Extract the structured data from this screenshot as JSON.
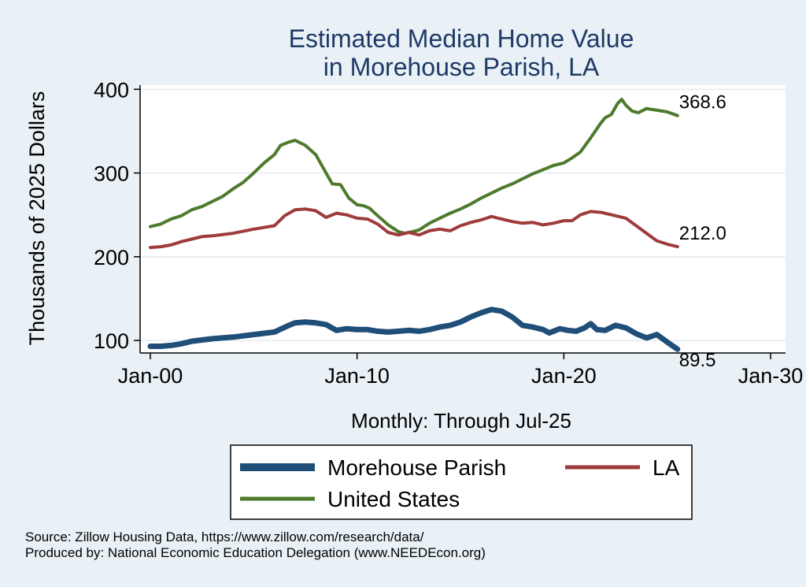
{
  "chart_data": {
    "type": "line",
    "title": [
      "Estimated Median Home Value",
      "in Morehouse Parish, LA"
    ],
    "xlabel": "Monthly: Through Jul-25",
    "ylabel": "Thousands of 2025 Dollars",
    "xlim": [
      2000,
      2030
    ],
    "ylim": [
      85,
      405
    ],
    "x_ticks": [
      {
        "value": 2000,
        "label": "Jan-00"
      },
      {
        "value": 2010,
        "label": "Jan-10"
      },
      {
        "value": 2020,
        "label": "Jan-20"
      },
      {
        "value": 2030,
        "label": "Jan-30"
      }
    ],
    "y_ticks": [
      100,
      200,
      300,
      400
    ],
    "series": [
      {
        "name": "Morehouse Parish",
        "color": "#1f4e79",
        "end_label": "89.5",
        "points": [
          [
            2000.0,
            93
          ],
          [
            2000.5,
            93
          ],
          [
            2001.0,
            94
          ],
          [
            2001.5,
            96
          ],
          [
            2002.0,
            99
          ],
          [
            2003.0,
            102
          ],
          [
            2004.0,
            104
          ],
          [
            2005.0,
            107
          ],
          [
            2006.0,
            110
          ],
          [
            2006.7,
            118
          ],
          [
            2007.0,
            121
          ],
          [
            2007.5,
            122
          ],
          [
            2008.0,
            121
          ],
          [
            2008.5,
            119
          ],
          [
            2009.0,
            112
          ],
          [
            2009.5,
            114
          ],
          [
            2010.0,
            113
          ],
          [
            2010.5,
            113
          ],
          [
            2011.0,
            111
          ],
          [
            2011.5,
            110
          ],
          [
            2012.0,
            111
          ],
          [
            2012.5,
            112
          ],
          [
            2013.0,
            111
          ],
          [
            2013.5,
            113
          ],
          [
            2014.0,
            116
          ],
          [
            2014.5,
            118
          ],
          [
            2015.0,
            122
          ],
          [
            2015.5,
            128
          ],
          [
            2016.0,
            133
          ],
          [
            2016.5,
            137
          ],
          [
            2017.0,
            135
          ],
          [
            2017.5,
            128
          ],
          [
            2018.0,
            118
          ],
          [
            2018.5,
            116
          ],
          [
            2019.0,
            113
          ],
          [
            2019.3,
            109
          ],
          [
            2019.8,
            114
          ],
          [
            2020.2,
            112
          ],
          [
            2020.6,
            111
          ],
          [
            2021.0,
            115
          ],
          [
            2021.3,
            120
          ],
          [
            2021.6,
            113
          ],
          [
            2022.0,
            112
          ],
          [
            2022.5,
            118
          ],
          [
            2023.0,
            115
          ],
          [
            2023.5,
            108
          ],
          [
            2024.0,
            103
          ],
          [
            2024.5,
            107
          ],
          [
            2025.0,
            98
          ],
          [
            2025.5,
            89.5
          ]
        ]
      },
      {
        "name": "LA",
        "color": "#9e3b3b",
        "end_label": "212.0",
        "points": [
          [
            2000.0,
            211
          ],
          [
            2000.5,
            212
          ],
          [
            2001.0,
            214
          ],
          [
            2001.5,
            218
          ],
          [
            2002.0,
            221
          ],
          [
            2002.5,
            224
          ],
          [
            2003.0,
            225
          ],
          [
            2004.0,
            228
          ],
          [
            2005.0,
            233
          ],
          [
            2006.0,
            237
          ],
          [
            2006.5,
            249
          ],
          [
            2007.0,
            256
          ],
          [
            2007.5,
            257
          ],
          [
            2008.0,
            255
          ],
          [
            2008.5,
            247
          ],
          [
            2009.0,
            252
          ],
          [
            2009.5,
            250
          ],
          [
            2010.0,
            246
          ],
          [
            2010.5,
            245
          ],
          [
            2011.0,
            239
          ],
          [
            2011.5,
            229
          ],
          [
            2012.0,
            226
          ],
          [
            2012.5,
            229
          ],
          [
            2013.0,
            226
          ],
          [
            2013.5,
            231
          ],
          [
            2014.0,
            233
          ],
          [
            2014.5,
            231
          ],
          [
            2015.0,
            237
          ],
          [
            2015.5,
            241
          ],
          [
            2016.0,
            244
          ],
          [
            2016.5,
            248
          ],
          [
            2017.0,
            245
          ],
          [
            2017.5,
            242
          ],
          [
            2018.0,
            240
          ],
          [
            2018.5,
            241
          ],
          [
            2019.0,
            238
          ],
          [
            2019.5,
            240
          ],
          [
            2020.0,
            243
          ],
          [
            2020.4,
            243
          ],
          [
            2020.8,
            250
          ],
          [
            2021.3,
            254
          ],
          [
            2021.8,
            253
          ],
          [
            2022.5,
            249
          ],
          [
            2023.0,
            246
          ],
          [
            2023.5,
            237
          ],
          [
            2024.0,
            228
          ],
          [
            2024.5,
            219
          ],
          [
            2025.0,
            215
          ],
          [
            2025.5,
            212
          ]
        ]
      },
      {
        "name": "United States",
        "color": "#4e7a2c",
        "end_label": "368.6",
        "points": [
          [
            2000.0,
            236
          ],
          [
            2000.5,
            239
          ],
          [
            2001.0,
            245
          ],
          [
            2001.5,
            249
          ],
          [
            2002.0,
            256
          ],
          [
            2002.5,
            260
          ],
          [
            2003.0,
            266
          ],
          [
            2003.5,
            272
          ],
          [
            2004.0,
            281
          ],
          [
            2004.5,
            289
          ],
          [
            2005.0,
            300
          ],
          [
            2005.5,
            312
          ],
          [
            2006.0,
            322
          ],
          [
            2006.3,
            333
          ],
          [
            2006.7,
            337
          ],
          [
            2007.0,
            339
          ],
          [
            2007.5,
            333
          ],
          [
            2008.0,
            322
          ],
          [
            2008.5,
            300
          ],
          [
            2008.8,
            287
          ],
          [
            2009.2,
            286
          ],
          [
            2009.6,
            270
          ],
          [
            2010.0,
            262
          ],
          [
            2010.3,
            261
          ],
          [
            2010.6,
            258
          ],
          [
            2011.0,
            249
          ],
          [
            2011.5,
            238
          ],
          [
            2012.0,
            230
          ],
          [
            2012.3,
            228
          ],
          [
            2012.7,
            230
          ],
          [
            2013.0,
            232
          ],
          [
            2013.5,
            240
          ],
          [
            2014.0,
            246
          ],
          [
            2014.5,
            252
          ],
          [
            2015.0,
            257
          ],
          [
            2015.5,
            263
          ],
          [
            2016.0,
            270
          ],
          [
            2016.5,
            276
          ],
          [
            2017.0,
            282
          ],
          [
            2017.5,
            287
          ],
          [
            2018.0,
            293
          ],
          [
            2018.5,
            299
          ],
          [
            2019.0,
            304
          ],
          [
            2019.5,
            309
          ],
          [
            2020.0,
            312
          ],
          [
            2020.4,
            318
          ],
          [
            2020.8,
            325
          ],
          [
            2021.3,
            342
          ],
          [
            2021.8,
            360
          ],
          [
            2022.0,
            366
          ],
          [
            2022.3,
            370
          ],
          [
            2022.6,
            383
          ],
          [
            2022.8,
            388
          ],
          [
            2023.0,
            381
          ],
          [
            2023.3,
            374
          ],
          [
            2023.6,
            372
          ],
          [
            2024.0,
            377
          ],
          [
            2024.5,
            375
          ],
          [
            2025.0,
            373
          ],
          [
            2025.5,
            368.6
          ]
        ]
      }
    ],
    "legend": {
      "placement": "bottom",
      "columns": 2
    }
  },
  "source_line": "Source: Zillow Housing Data, https://www.zillow.com/research/data/",
  "produced_line": "Produced by: National Economic Education Delegation (www.NEEDEcon.org)"
}
